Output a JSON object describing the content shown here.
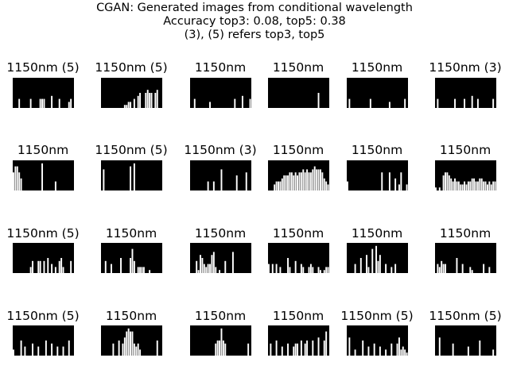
{
  "figure": {
    "title_lines": [
      "CGAN: Generated images from conditional wavelength",
      "Accuracy top3: 0.08, top5: 0.38",
      "(3), (5) refers top3, top5"
    ]
  },
  "chart_data": {
    "type": "image-grid",
    "rows": 4,
    "cols": 6,
    "title": "CGAN: Generated images from conditional wavelength",
    "accuracy": {
      "top3": 0.08,
      "top5": 0.38
    },
    "note": "(3), (5) refers top3, top5",
    "panels": [
      {
        "label": "1150nm (5)",
        "bars": [
          0,
          0,
          0,
          0.3,
          0,
          0,
          0,
          0,
          0,
          0.3,
          0,
          0,
          0,
          0,
          0.3,
          0.3,
          0.3,
          0,
          0,
          0,
          0.4,
          0,
          0,
          0,
          0.3,
          0,
          0,
          0,
          0,
          0.2,
          0.3,
          0
        ]
      },
      {
        "label": "1150nm (5)",
        "bars": [
          0,
          0,
          0,
          0,
          0,
          0,
          0,
          0,
          0,
          0,
          0,
          0,
          0.1,
          0.1,
          0.2,
          0.2,
          0,
          0.3,
          0,
          0.4,
          0.5,
          0,
          0,
          0.5,
          0.6,
          0.5,
          0.5,
          0,
          0.5,
          0.6,
          0,
          0
        ]
      },
      {
        "label": "1150nm",
        "bars": [
          0,
          0,
          0.3,
          0,
          0,
          0,
          0,
          0,
          0,
          0,
          0.2,
          0,
          0,
          0,
          0,
          0,
          0,
          0,
          0,
          0,
          0,
          0,
          0,
          0.3,
          0,
          0,
          0,
          0.4,
          0,
          0,
          0,
          0.3
        ]
      },
      {
        "label": "1150nm",
        "bars": [
          0,
          0,
          0,
          0,
          0,
          0,
          0,
          0,
          0,
          0,
          0,
          0,
          0,
          0,
          0,
          0,
          0,
          0,
          0,
          0,
          0,
          0,
          0,
          0,
          0,
          0,
          0.5,
          0,
          0,
          0,
          0,
          0
        ]
      },
      {
        "label": "1150nm",
        "bars": [
          0,
          0.3,
          0,
          0,
          0,
          0,
          0,
          0,
          0,
          0,
          0,
          0,
          0.3,
          0,
          0,
          0,
          0,
          0,
          0,
          0,
          0,
          0,
          0.2,
          0,
          0,
          0,
          0,
          0,
          0,
          0,
          0.3,
          0
        ]
      },
      {
        "label": "1150nm (3)",
        "bars": [
          0,
          0.3,
          0,
          0,
          0,
          0,
          0,
          0,
          0,
          0,
          0.3,
          0,
          0,
          0,
          0,
          0.3,
          0,
          0,
          0,
          0.4,
          0,
          0,
          0.3,
          0,
          0,
          0,
          0,
          0,
          0,
          0,
          0.3,
          0
        ]
      },
      {
        "label": "1150nm",
        "bars": [
          0.6,
          0.8,
          0.8,
          0.6,
          0.4,
          0,
          0,
          0,
          0,
          0,
          0,
          0,
          0,
          0,
          0,
          0.9,
          0,
          0,
          0,
          0,
          0,
          0,
          0.3,
          0,
          0,
          0,
          0,
          0,
          0,
          0,
          0,
          0
        ]
      },
      {
        "label": "1150nm (5)",
        "bars": [
          0,
          0.7,
          0,
          0,
          0,
          0,
          0,
          0,
          0,
          0,
          0,
          0,
          0,
          0,
          0,
          0.8,
          0,
          0.9,
          0,
          0,
          0,
          0,
          0,
          0,
          0,
          0,
          0,
          0,
          0,
          0,
          0,
          0
        ]
      },
      {
        "label": "1150nm (3)",
        "bars": [
          0,
          0,
          0,
          0,
          0,
          0,
          0,
          0,
          0,
          0.3,
          0,
          0,
          0.3,
          0,
          0,
          0,
          0.7,
          0,
          0,
          0,
          0,
          0,
          0,
          0,
          0.5,
          0,
          0,
          0,
          0,
          0.6,
          0,
          0
        ]
      },
      {
        "label": "1150nm",
        "bars": [
          0,
          0,
          0,
          0.2,
          0.3,
          0.3,
          0.3,
          0.4,
          0.5,
          0.5,
          0.5,
          0.6,
          0.6,
          0.5,
          0.6,
          0.5,
          0.6,
          0.6,
          0.7,
          0.6,
          0.7,
          0.6,
          0.6,
          0.7,
          0.8,
          0.7,
          0.7,
          0.7,
          0.6,
          0.4,
          0.3,
          0.2
        ]
      },
      {
        "label": "1150nm",
        "bars": [
          0.3,
          0,
          0,
          0,
          0,
          0,
          0,
          0,
          0,
          0,
          0,
          0,
          0,
          0,
          0,
          0,
          0,
          0,
          0.6,
          0,
          0,
          0,
          0.6,
          0,
          0,
          0.4,
          0,
          0.2,
          0.6,
          0,
          0,
          0.2
        ]
      },
      {
        "label": "1150nm",
        "bars": [
          0.1,
          0,
          0.1,
          0,
          0.5,
          0.6,
          0.6,
          0.5,
          0.4,
          0.3,
          0.4,
          0.3,
          0.3,
          0.2,
          0.2,
          0.3,
          0.2,
          0.3,
          0.3,
          0.4,
          0.4,
          0.3,
          0.3,
          0.4,
          0.4,
          0.3,
          0.3,
          0.2,
          0.3,
          0.2,
          0.3,
          0.3
        ]
      },
      {
        "label": "1150nm (5)",
        "bars": [
          0,
          0,
          0,
          0,
          0,
          0,
          0,
          0,
          0,
          0.2,
          0.4,
          0,
          0,
          0.4,
          0.4,
          0,
          0.4,
          0,
          0.5,
          0,
          0.3,
          0,
          0.2,
          0,
          0.4,
          0.5,
          0.2,
          0,
          0,
          0,
          0.4,
          0
        ]
      },
      {
        "label": "1150nm",
        "bars": [
          0,
          0,
          0.4,
          0,
          0,
          0.3,
          0,
          0,
          0,
          0,
          0.5,
          0,
          0,
          0,
          0,
          0.5,
          0.8,
          0.4,
          0,
          0.2,
          0.2,
          0.2,
          0.2,
          0,
          0,
          0.1,
          0,
          0,
          0,
          0,
          0,
          0
        ]
      },
      {
        "label": "1150nm",
        "bars": [
          0,
          0,
          0,
          0.4,
          0.1,
          0.6,
          0.5,
          0.3,
          0.2,
          0.3,
          0.3,
          0.6,
          0.7,
          0.2,
          0,
          0.1,
          0,
          0,
          0.4,
          0,
          0,
          0,
          0.7,
          0,
          0,
          0,
          0,
          0,
          0,
          0,
          0,
          0
        ]
      },
      {
        "label": "1150nm",
        "bars": [
          0.3,
          0,
          0.3,
          0,
          0.3,
          0,
          0.2,
          0,
          0,
          0,
          0.5,
          0.2,
          0,
          0,
          0.4,
          0,
          0,
          0.3,
          0.2,
          0,
          0,
          0.2,
          0.3,
          0.2,
          0,
          0,
          0.2,
          0.1,
          0,
          0.1,
          0.2,
          0.2
        ]
      },
      {
        "label": "1150nm",
        "bars": [
          0,
          0,
          0,
          0,
          0.3,
          0,
          0,
          0.5,
          0,
          0,
          0.6,
          0.2,
          0,
          0.8,
          0,
          0.9,
          0.4,
          0.6,
          0,
          0,
          0.3,
          0,
          0,
          0.2,
          0,
          0.3,
          0,
          0,
          0,
          0,
          0,
          0
        ]
      },
      {
        "label": "1150nm",
        "bars": [
          0,
          0.3,
          0.2,
          0.4,
          0.3,
          0.3,
          0,
          0,
          0,
          0,
          0,
          0.5,
          0,
          0,
          0.3,
          0,
          0,
          0,
          0.2,
          0.1,
          0,
          0,
          0,
          0,
          0,
          0.3,
          0,
          0,
          0.2,
          0,
          0,
          0
        ]
      },
      {
        "label": "1150nm (5)",
        "bars": [
          0.2,
          0,
          0,
          0,
          0.5,
          0,
          0.3,
          0,
          0,
          0,
          0.4,
          0,
          0,
          0.3,
          0,
          0,
          0,
          0.5,
          0,
          0,
          0.4,
          0,
          0,
          0.3,
          0,
          0,
          0.3,
          0,
          0,
          0.5,
          0,
          0
        ]
      },
      {
        "label": "1150nm",
        "bars": [
          0,
          0,
          0,
          0,
          0,
          0,
          0.4,
          0,
          0,
          0.5,
          0,
          0.4,
          0.6,
          0.8,
          0.9,
          0.8,
          0.8,
          0.4,
          0.3,
          0.4,
          0.2,
          0,
          0,
          0,
          0,
          0,
          0,
          0,
          0,
          0.5,
          0,
          0
        ]
      },
      {
        "label": "1150nm",
        "bars": [
          0,
          0,
          0,
          0,
          0,
          0,
          0,
          0,
          0,
          0,
          0,
          0,
          0,
          0.4,
          0.5,
          0.5,
          0.9,
          0.5,
          0.4,
          0,
          0,
          0,
          0,
          0,
          0,
          0,
          0,
          0,
          0,
          0,
          0.4,
          0
        ]
      },
      {
        "label": "1150nm",
        "bars": [
          0,
          0.4,
          0,
          0,
          0.5,
          0,
          0,
          0.3,
          0,
          0,
          0.4,
          0,
          0,
          0.3,
          0.4,
          0.4,
          0,
          0.5,
          0,
          0.4,
          0.5,
          0,
          0,
          0.5,
          0,
          0,
          0.6,
          0,
          0,
          0.5,
          0.8,
          0
        ]
      },
      {
        "label": "1150nm (5)",
        "bars": [
          0,
          0.6,
          0,
          0,
          0.2,
          0,
          0,
          0,
          0.5,
          0,
          0,
          0.3,
          0,
          0,
          0.4,
          0,
          0,
          0.3,
          0,
          0,
          0.2,
          0,
          0,
          0.4,
          0,
          0,
          0.4,
          0.6,
          0.2,
          0.3,
          0.2,
          0.1
        ]
      },
      {
        "label": "1150nm (5)",
        "bars": [
          0,
          0,
          0.6,
          0,
          0,
          0,
          0,
          0,
          0,
          0.4,
          0,
          0,
          0,
          0,
          0,
          0,
          0,
          0.3,
          0,
          0,
          0,
          0,
          0,
          0.5,
          0,
          0,
          0,
          0,
          0,
          0,
          0.2,
          0
        ]
      }
    ]
  }
}
